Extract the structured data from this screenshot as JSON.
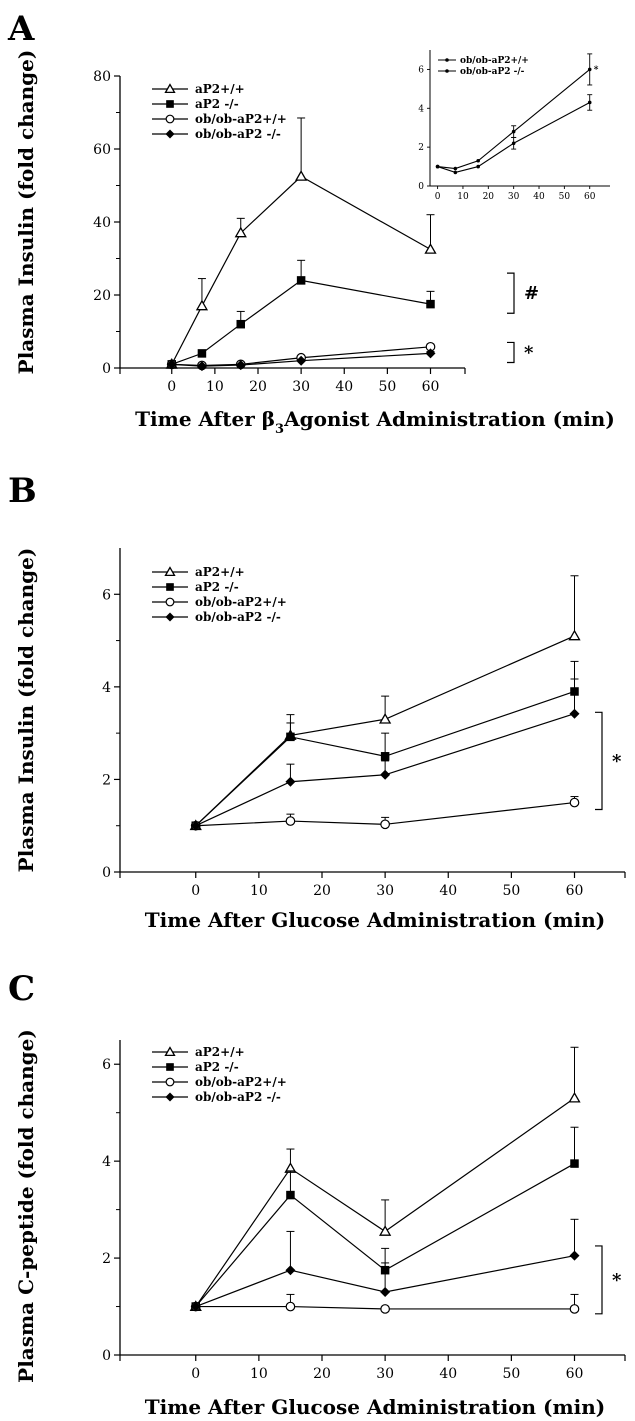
{
  "figure": {
    "panels": [
      "A",
      "B",
      "C"
    ]
  },
  "chart_data": [
    {
      "type": "line",
      "panel": "A",
      "xlabel_prefix": "Time After ",
      "xlabel_beta": "β",
      "xlabel_sub": "3",
      "xlabel_suffix": "Agonist Administration (min)",
      "ylabel": "Plasma Insulin (fold change)",
      "xlim": [
        -12,
        68
      ],
      "ylim": [
        0,
        80
      ],
      "xticks": [
        0,
        10,
        20,
        30,
        40,
        50,
        60
      ],
      "yticks": [
        0,
        20,
        40,
        60,
        80
      ],
      "legend": "top-left",
      "series": [
        {
          "name": "aP2+/+",
          "marker": "triangle-open",
          "x": [
            0,
            7,
            16,
            30,
            60
          ],
          "y": [
            1,
            17,
            37,
            52.5,
            32.5
          ],
          "err": [
            0,
            7.5,
            4,
            16,
            9.5
          ]
        },
        {
          "name": "aP2 -/-",
          "marker": "square-filled",
          "x": [
            0,
            7,
            16,
            30,
            60
          ],
          "y": [
            1,
            4,
            12,
            24,
            17.5
          ],
          "err": [
            0,
            0,
            3.5,
            5.5,
            3.5
          ]
        },
        {
          "name": "ob/ob-aP2+/+",
          "marker": "circle-open",
          "x": [
            0,
            7,
            16,
            30,
            60
          ],
          "y": [
            1,
            0.7,
            1,
            2.8,
            5.8
          ],
          "err": [
            0,
            0,
            0,
            0,
            0.7
          ]
        },
        {
          "name": "ob/ob-aP2 -/-",
          "marker": "diamond-filled",
          "x": [
            0,
            7,
            16,
            30,
            60
          ],
          "y": [
            1,
            0.5,
            0.8,
            2,
            4
          ],
          "err": [
            0,
            0,
            0,
            0,
            0.5
          ]
        }
      ],
      "brackets": [
        {
          "label": "#",
          "y": [
            15,
            26
          ]
        },
        {
          "label": "*",
          "y": [
            1.5,
            7
          ]
        }
      ],
      "inset": {
        "xlim": [
          -3,
          68
        ],
        "ylim": [
          0,
          7
        ],
        "xticks": [
          0,
          10,
          20,
          30,
          40,
          50,
          60
        ],
        "yticks": [
          0,
          2,
          4,
          6
        ],
        "mark": "*",
        "series": [
          {
            "name": "ob/ob-aP2+/+",
            "x": [
              0,
              7,
              16,
              30,
              60
            ],
            "y": [
              1,
              0.9,
              1.3,
              2.8,
              6
            ],
            "err": [
              0,
              0,
              0,
              0.3,
              0.8
            ]
          },
          {
            "name": "ob/ob-aP2 -/-",
            "x": [
              0,
              7,
              16,
              30,
              60
            ],
            "y": [
              1,
              0.7,
              1,
              2.2,
              4.3
            ],
            "err": [
              0,
              0,
              0,
              0.3,
              0.4
            ]
          }
        ]
      }
    },
    {
      "type": "line",
      "panel": "B",
      "xlabel": "Time After Glucose Administration (min)",
      "ylabel": "Plasma Insulin (fold change)",
      "xlim": [
        -12,
        68
      ],
      "ylim": [
        0,
        7
      ],
      "xticks": [
        0,
        10,
        20,
        30,
        40,
        50,
        60
      ],
      "yticks": [
        0,
        2,
        4,
        6
      ],
      "legend": "top-left",
      "series": [
        {
          "name": "aP2+/+",
          "marker": "triangle-open",
          "x": [
            0,
            15,
            30,
            60
          ],
          "y": [
            1,
            2.95,
            3.3,
            5.1
          ],
          "err": [
            0,
            0.45,
            0.5,
            1.3
          ]
        },
        {
          "name": "aP2 -/-",
          "marker": "square-filled",
          "x": [
            0,
            15,
            30,
            60
          ],
          "y": [
            1,
            2.92,
            2.5,
            3.9
          ],
          "err": [
            0,
            0.3,
            0.5,
            0.65
          ]
        },
        {
          "name": "ob/ob-aP2+/+",
          "marker": "circle-open",
          "x": [
            0,
            15,
            30,
            60
          ],
          "y": [
            1,
            1.1,
            1.03,
            1.5
          ],
          "err": [
            0,
            0.15,
            0.15,
            0.13
          ]
        },
        {
          "name": "ob/ob-aP2 -/-",
          "marker": "diamond-filled",
          "x": [
            0,
            15,
            30,
            60
          ],
          "y": [
            1,
            1.95,
            2.1,
            3.42
          ],
          "err": [
            0,
            0.38,
            0.3,
            0.75
          ]
        }
      ],
      "brackets": [
        {
          "label": "*",
          "y": [
            1.35,
            3.45
          ]
        }
      ]
    },
    {
      "type": "line",
      "panel": "C",
      "xlabel": "Time After Glucose Administration (min)",
      "ylabel": "Plasma C-peptide (fold change)",
      "xlim": [
        -12,
        68
      ],
      "ylim": [
        0,
        6.5
      ],
      "xticks": [
        0,
        10,
        20,
        30,
        40,
        50,
        60
      ],
      "yticks": [
        0,
        2,
        4,
        6
      ],
      "legend": "top-left",
      "series": [
        {
          "name": "aP2+/+",
          "marker": "triangle-open",
          "x": [
            0,
            15,
            30,
            60
          ],
          "y": [
            1,
            3.85,
            2.55,
            5.3
          ],
          "err": [
            0,
            0.4,
            0.65,
            1.05
          ]
        },
        {
          "name": "aP2 -/-",
          "marker": "square-filled",
          "x": [
            0,
            15,
            30,
            60
          ],
          "y": [
            1,
            3.3,
            1.75,
            3.95
          ],
          "err": [
            0,
            0.5,
            0.45,
            0.75
          ]
        },
        {
          "name": "ob/ob-aP2+/+",
          "marker": "circle-open",
          "x": [
            0,
            15,
            30,
            60
          ],
          "y": [
            1,
            1,
            0.95,
            0.95
          ],
          "err": [
            0,
            0.25,
            0,
            0.3
          ]
        },
        {
          "name": "ob/ob-aP2 -/-",
          "marker": "diamond-filled",
          "x": [
            0,
            15,
            30,
            60
          ],
          "y": [
            1,
            1.75,
            1.3,
            2.05
          ],
          "err": [
            0,
            0.8,
            0.6,
            0.75
          ]
        }
      ],
      "brackets": [
        {
          "label": "*",
          "y": [
            0.85,
            2.25
          ]
        }
      ]
    }
  ]
}
